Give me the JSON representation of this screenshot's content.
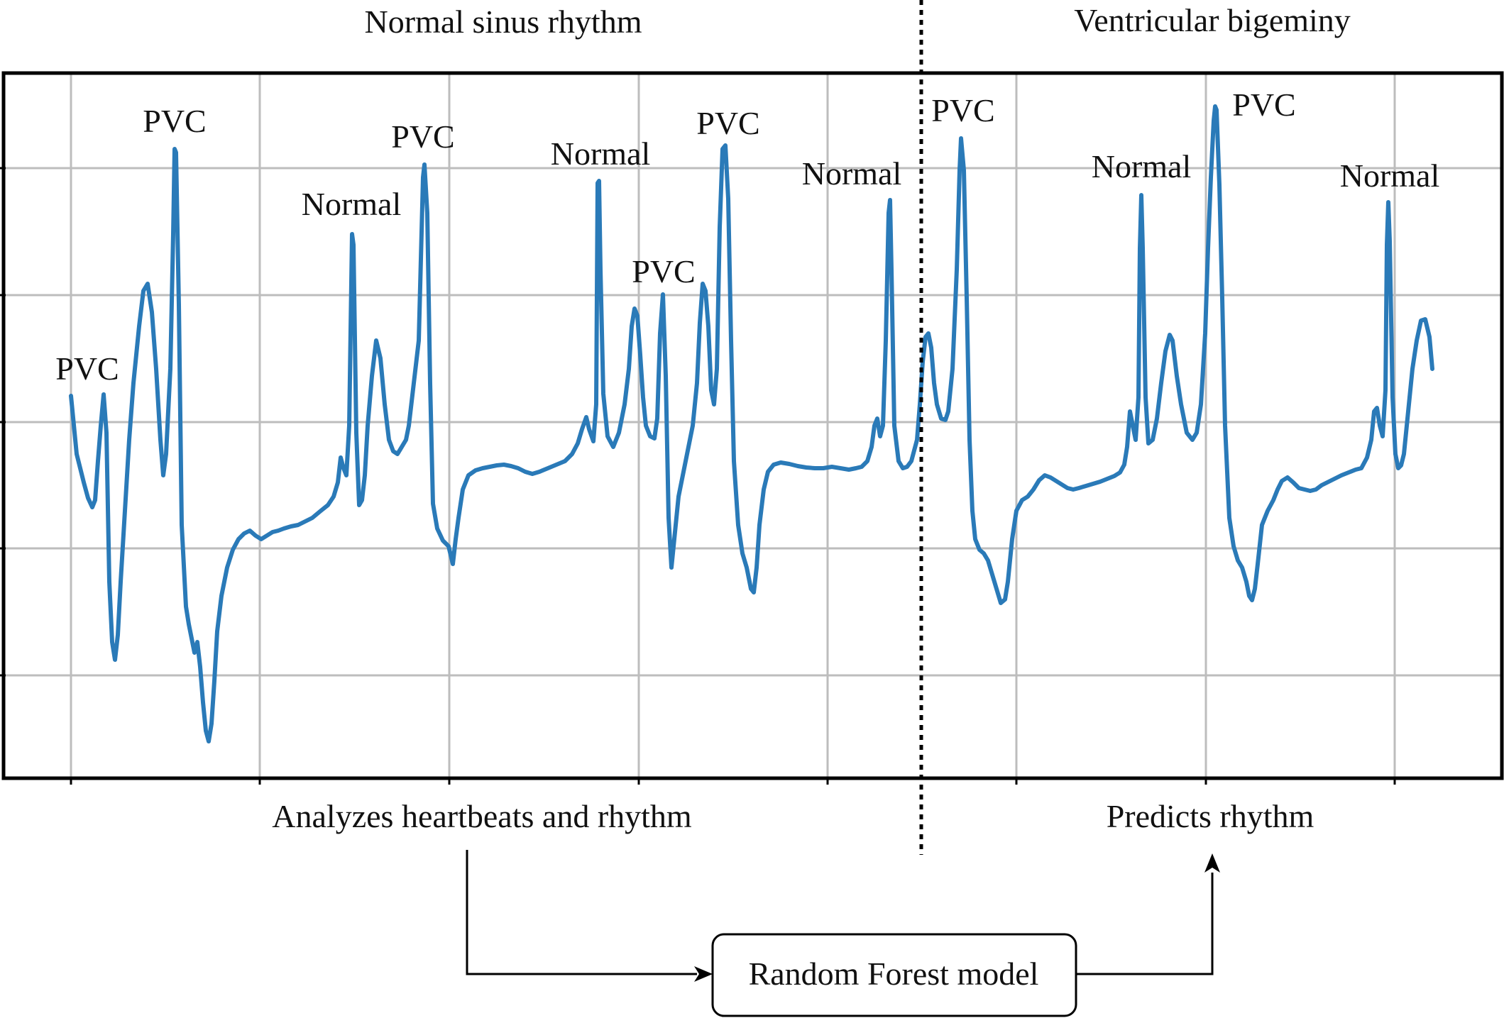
{
  "sections": {
    "left_title": "Normal sinus rhythm",
    "right_title": "Ventricular bigeminy"
  },
  "beat_labels": [
    {
      "text": "PVC"
    },
    {
      "text": "PVC"
    },
    {
      "text": "Normal"
    },
    {
      "text": "PVC"
    },
    {
      "text": "Normal"
    },
    {
      "text": "PVC"
    },
    {
      "text": "PVC"
    },
    {
      "text": "Normal"
    },
    {
      "text": "PVC"
    },
    {
      "text": "Normal"
    },
    {
      "text": "PVC"
    },
    {
      "text": "Normal"
    }
  ],
  "captions": {
    "left": "Analyzes heartbeats and rhythm",
    "right": "Predicts rhythm"
  },
  "model_box": {
    "label": "Random Forest model"
  },
  "colors": {
    "trace": "#2a7ab8",
    "grid": "#bdbdbd",
    "frame": "#000000",
    "divider": "#000000"
  },
  "grid": true,
  "divider_style": "dotted"
}
